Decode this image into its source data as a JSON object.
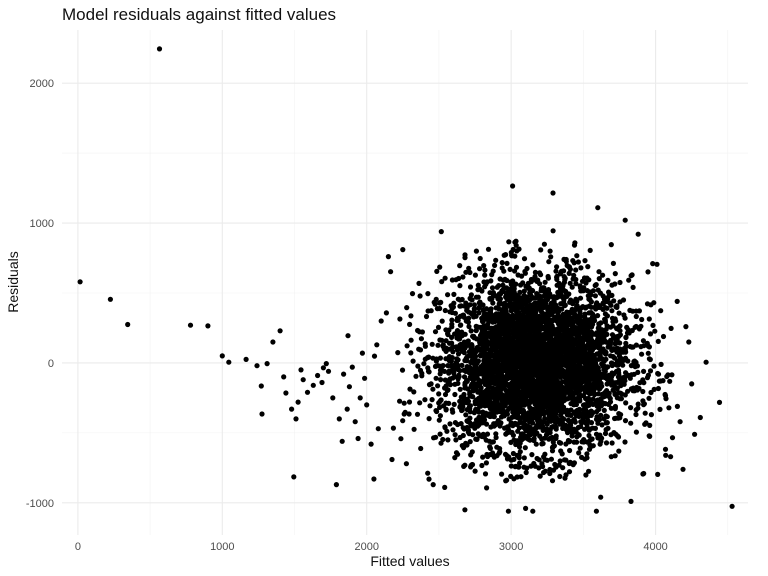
{
  "chart_data": {
    "type": "scatter",
    "title": "Model residuals against fitted values",
    "xlabel": "Fitted values",
    "ylabel": "Residuals",
    "xlim": [
      -110,
      4640
    ],
    "ylim": [
      -1230,
      2380
    ],
    "x_ticks": [
      0,
      1000,
      2000,
      3000,
      4000
    ],
    "x_tick_labels": [
      "0",
      "1000",
      "2000",
      "3000",
      "4000"
    ],
    "y_ticks": [
      -1000,
      0,
      1000,
      2000
    ],
    "y_tick_labels": [
      "-1000",
      "0",
      "1000",
      "2000"
    ],
    "grid": true,
    "legend": "none",
    "point_color": "#000000",
    "outlier_points": [
      {
        "x": 15,
        "y": 580
      },
      {
        "x": 225,
        "y": 455
      },
      {
        "x": 345,
        "y": 275
      },
      {
        "x": 565,
        "y": 2245
      },
      {
        "x": 780,
        "y": 270
      },
      {
        "x": 900,
        "y": 265
      },
      {
        "x": 1000,
        "y": 50
      },
      {
        "x": 1045,
        "y": 5
      },
      {
        "x": 1165,
        "y": 25
      },
      {
        "x": 1240,
        "y": -20
      },
      {
        "x": 1270,
        "y": -165
      },
      {
        "x": 1275,
        "y": -365
      },
      {
        "x": 1310,
        "y": -5
      },
      {
        "x": 1350,
        "y": 150
      },
      {
        "x": 1400,
        "y": 230
      },
      {
        "x": 1425,
        "y": -100
      },
      {
        "x": 1440,
        "y": -215
      },
      {
        "x": 1480,
        "y": -330
      },
      {
        "x": 1495,
        "y": -815
      },
      {
        "x": 1510,
        "y": -400
      },
      {
        "x": 1525,
        "y": -280
      },
      {
        "x": 1545,
        "y": -50
      },
      {
        "x": 1560,
        "y": -120
      },
      {
        "x": 1590,
        "y": -210
      },
      {
        "x": 1630,
        "y": -160
      },
      {
        "x": 1660,
        "y": -90
      },
      {
        "x": 1690,
        "y": -140
      },
      {
        "x": 1700,
        "y": -35
      },
      {
        "x": 1720,
        "y": -5
      },
      {
        "x": 1735,
        "y": -60
      },
      {
        "x": 1765,
        "y": -250
      },
      {
        "x": 1790,
        "y": -870
      },
      {
        "x": 1810,
        "y": -400
      },
      {
        "x": 1830,
        "y": -560
      },
      {
        "x": 1840,
        "y": -80
      },
      {
        "x": 1865,
        "y": -330
      },
      {
        "x": 1870,
        "y": 195
      },
      {
        "x": 1880,
        "y": -170
      },
      {
        "x": 1900,
        "y": -30
      },
      {
        "x": 1920,
        "y": -420
      },
      {
        "x": 1940,
        "y": -540
      },
      {
        "x": 1955,
        "y": -250
      },
      {
        "x": 1970,
        "y": 70
      },
      {
        "x": 1985,
        "y": -110
      },
      {
        "x": 2000,
        "y": -300
      },
      {
        "x": 2030,
        "y": -580
      },
      {
        "x": 2050,
        "y": -830
      },
      {
        "x": 2070,
        "y": 130
      },
      {
        "x": 2080,
        "y": -470
      },
      {
        "x": 2100,
        "y": 300
      },
      {
        "x": 2150,
        "y": 760
      },
      {
        "x": 2175,
        "y": -690
      },
      {
        "x": 2250,
        "y": 810
      },
      {
        "x": 2275,
        "y": -720
      },
      {
        "x": 2460,
        "y": -870
      },
      {
        "x": 2540,
        "y": -890
      },
      {
        "x": 2680,
        "y": -1050
      },
      {
        "x": 3010,
        "y": 1265
      },
      {
        "x": 3100,
        "y": -1040
      },
      {
        "x": 3150,
        "y": -1060
      },
      {
        "x": 3290,
        "y": 1215
      },
      {
        "x": 3590,
        "y": -1060
      },
      {
        "x": 3620,
        "y": -960
      },
      {
        "x": 3600,
        "y": 1110
      },
      {
        "x": 3790,
        "y": 1020
      },
      {
        "x": 3830,
        "y": -990
      },
      {
        "x": 3880,
        "y": 920
      },
      {
        "x": 3980,
        "y": 710
      },
      {
        "x": 4010,
        "y": 705
      },
      {
        "x": 4070,
        "y": -660
      },
      {
        "x": 4150,
        "y": 440
      },
      {
        "x": 4170,
        "y": -420
      },
      {
        "x": 4190,
        "y": -760
      },
      {
        "x": 4210,
        "y": 260
      },
      {
        "x": 4230,
        "y": 150
      },
      {
        "x": 4250,
        "y": -150
      },
      {
        "x": 4270,
        "y": -510
      },
      {
        "x": 4310,
        "y": -390
      },
      {
        "x": 4350,
        "y": 5
      },
      {
        "x": 4530,
        "y": -1025
      }
    ],
    "bulk_distribution": {
      "x_mean": 3170,
      "x_sd": 330,
      "y_mean": 0,
      "y_sd": 310,
      "count": 4200
    }
  }
}
